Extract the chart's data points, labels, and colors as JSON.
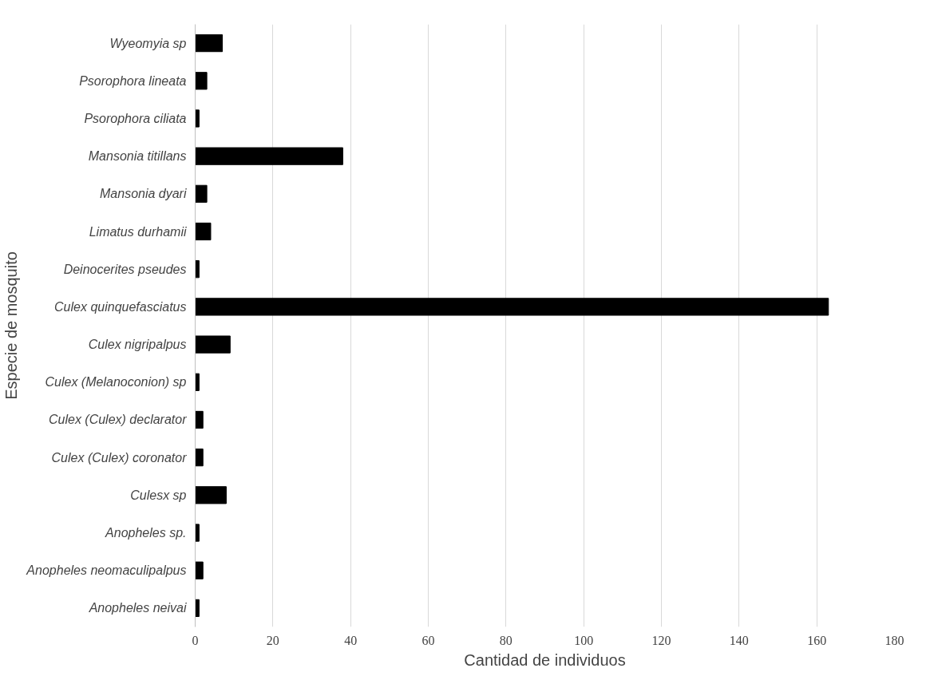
{
  "chart_data": {
    "type": "bar",
    "orientation": "horizontal",
    "xlabel": "Cantidad de individuos",
    "ylabel": "Especie de mosquito",
    "categories": [
      "Wyeomyia sp",
      "Psorophora lineata",
      "Psorophora ciliata",
      "Mansonia titillans",
      "Mansonia dyari",
      "Limatus durhamii",
      "Deinocerites pseudes",
      "Culex quinquefasciatus",
      "Culex nigripalpus",
      "Culex (Melanoconion) sp",
      "Culex (Culex) declarator",
      "Culex (Culex) coronator",
      "Culesx sp",
      "Anopheles sp.",
      "Anopheles neomaculipalpus",
      "Anopheles neivai"
    ],
    "values": [
      7,
      3,
      1,
      38,
      3,
      4,
      1,
      163,
      9,
      1,
      2,
      2,
      8,
      1,
      2,
      1
    ],
    "color": "#000000",
    "xlim": [
      0,
      180
    ],
    "xticks": [
      0,
      20,
      40,
      60,
      80,
      100,
      120,
      140,
      160,
      180
    ],
    "grid": "x"
  }
}
